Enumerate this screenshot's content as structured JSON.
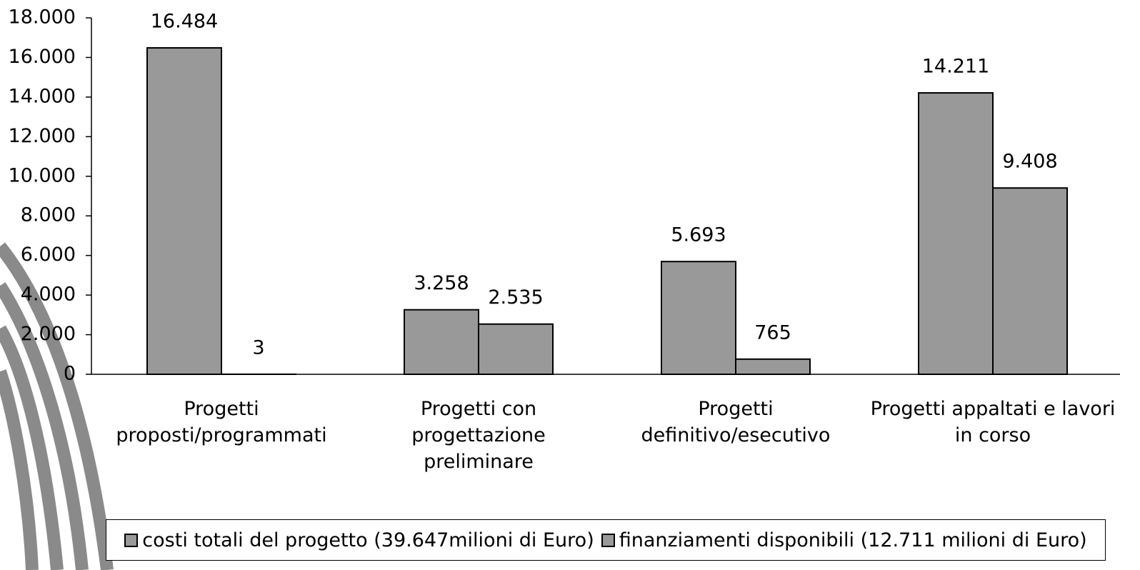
{
  "chart_data": {
    "type": "bar",
    "categories": [
      "Progetti\nproposti/programmati",
      "Progetti con\nprogettazione\npreliminare",
      "Progetti\ndefinitivo/esecutivo",
      "Progetti appaltati e lavori\nin corso"
    ],
    "series": [
      {
        "name": "costi totali del progetto (39.647milioni di Euro)",
        "color": "#999999",
        "values": [
          16484,
          3258,
          5693,
          14211
        ],
        "value_labels": [
          "16.484",
          "3.258",
          "5.693",
          "14.211"
        ]
      },
      {
        "name": "finanziamenti disponibili (12.711 milioni di Euro)",
        "color": "#999999",
        "values": [
          3,
          2535,
          765,
          9408
        ],
        "value_labels": [
          "3",
          "2.535",
          "765",
          "9.408"
        ]
      }
    ],
    "ylim": [
      0,
      18000
    ],
    "yticks": [
      0,
      {
        "value": 2000,
        "label": "2.000"
      },
      {
        "value": 4000,
        "label": "4.000"
      },
      {
        "value": 6000,
        "label": "6.000"
      },
      {
        "value": 8000,
        "label": "8.000"
      },
      {
        "value": 10000,
        "label": "10.000"
      },
      {
        "value": 12000,
        "label": "12.000"
      },
      {
        "value": 14000,
        "label": "14.000"
      },
      {
        "value": 16000,
        "label": "16.000"
      },
      {
        "value": 18000,
        "label": "18.000"
      }
    ],
    "grid": false
  }
}
